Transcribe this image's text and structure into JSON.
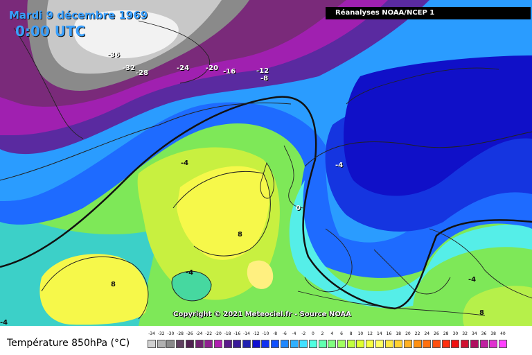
{
  "header": {
    "date": "Mardi 9 décembre 1969",
    "time": "0:00 UTC"
  },
  "source": "Réanalyses NOAA/NCEP 1",
  "copyright": "Copyright © 2021 Meteociel.fr - Source NOAA",
  "legend": {
    "title": "Température 850hPa (°C)",
    "values": [
      "-34",
      "-32",
      "-30",
      "-28",
      "-26",
      "-24",
      "-22",
      "-20",
      "-18",
      "-16",
      "-14",
      "-12",
      "-10",
      "-8",
      "-6",
      "-4",
      "-2",
      "0",
      "2",
      "4",
      "6",
      "8",
      "10",
      "12",
      "14",
      "16",
      "18",
      "20",
      "22",
      "24",
      "26",
      "28",
      "30",
      "32",
      "34",
      "36",
      "38",
      "40"
    ],
    "colors": [
      "#d0d0d0",
      "#b0b0b0",
      "#8a8a8a",
      "#604060",
      "#502050",
      "#702070",
      "#902090",
      "#b020b0",
      "#5a1a8a",
      "#3a1a9a",
      "#2020b0",
      "#1010d0",
      "#1030f0",
      "#1050ff",
      "#2088ff",
      "#30b0ff",
      "#40e0ff",
      "#50ffe0",
      "#60ffb0",
      "#80ff80",
      "#a0ff60",
      "#c0ff40",
      "#e0ff30",
      "#f8ff40",
      "#ffff60",
      "#ffe840",
      "#ffd030",
      "#ffb020",
      "#ff9010",
      "#ff7010",
      "#ff5010",
      "#ff3010",
      "#f01010",
      "#d01030",
      "#b01060",
      "#c020a0",
      "#e030d0",
      "#ff40ff"
    ]
  },
  "isolines": [
    {
      "label": "-36"
    },
    {
      "label": "-32"
    },
    {
      "label": "-28"
    },
    {
      "label": "-24"
    },
    {
      "label": "-20"
    },
    {
      "label": "-16"
    },
    {
      "label": "-12"
    },
    {
      "label": "-8"
    },
    {
      "label": "-4"
    },
    {
      "label": "-4"
    },
    {
      "label": "0"
    },
    {
      "label": "8"
    },
    {
      "label": "8"
    },
    {
      "label": "-4"
    },
    {
      "label": "8"
    },
    {
      "label": "-4"
    },
    {
      "label": "-4"
    }
  ]
}
